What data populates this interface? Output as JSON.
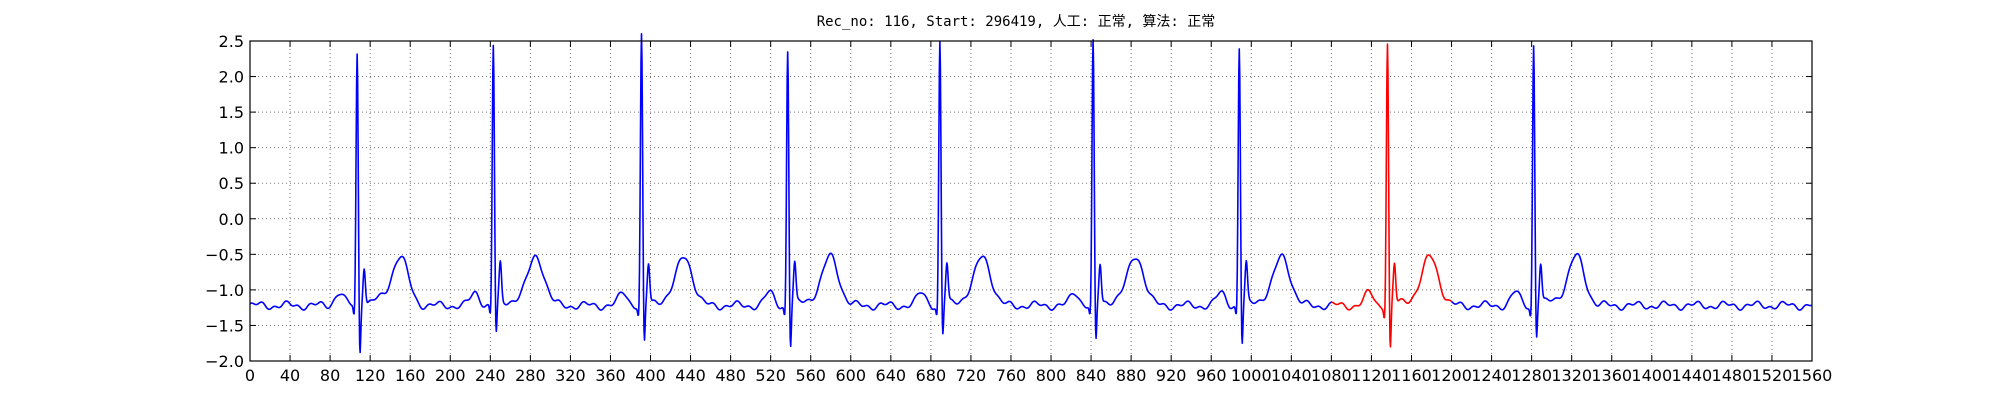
{
  "chart_data": {
    "type": "line",
    "title": "Rec_no: 116, Start: 296419, 人工: 正常, 算法: 正常",
    "xlabel": "",
    "ylabel": "",
    "xlim": [
      0,
      1560
    ],
    "ylim": [
      -2.0,
      2.5
    ],
    "grid": true,
    "x_ticks": [
      0,
      40,
      80,
      120,
      160,
      200,
      240,
      280,
      320,
      360,
      400,
      440,
      480,
      520,
      560,
      600,
      640,
      680,
      720,
      760,
      800,
      840,
      880,
      920,
      960,
      1000,
      1040,
      1080,
      1120,
      1160,
      1200,
      1240,
      1280,
      1320,
      1360,
      1400,
      1440,
      1480,
      1520,
      1560
    ],
    "x_tick_labels": [
      "0",
      "40",
      "80",
      "120",
      "160",
      "200",
      "240",
      "280",
      "320",
      "360",
      "400",
      "440",
      "480",
      "520",
      "560",
      "600",
      "640",
      "680",
      "720",
      "760",
      "800",
      "840",
      "880",
      "920",
      "960",
      "1000",
      "1040",
      "1080",
      "1120",
      "1160",
      "1200",
      "1240",
      "1280",
      "1320",
      "1360",
      "1400",
      "1440",
      "1480",
      "1520",
      "1560"
    ],
    "y_ticks": [
      -2.0,
      -1.5,
      -1.0,
      -0.5,
      0.0,
      0.5,
      1.0,
      1.5,
      2.0,
      2.5
    ],
    "y_tick_labels": [
      "−2.0",
      "−1.5",
      "−1.0",
      "−0.5",
      "0.0",
      "0.5",
      "1.0",
      "1.5",
      "2.0",
      "2.5"
    ],
    "series": [
      {
        "color": "#0000ff",
        "segments": [
          {
            "x_start": 0,
            "x_end": 1080
          },
          {
            "x_start": 1200,
            "x_end": 1560
          }
        ]
      },
      {
        "color": "#ff0000",
        "segments": [
          {
            "x_start": 1080,
            "x_end": 1200
          }
        ]
      }
    ],
    "beats": [
      {
        "r_x": 107,
        "r_y": 2.2,
        "s_y": -1.85
      },
      {
        "r_x": 243,
        "r_y": 2.32,
        "s_y": -1.6
      },
      {
        "r_x": 391,
        "r_y": 2.45,
        "s_y": -1.75
      },
      {
        "r_x": 537,
        "r_y": 2.25,
        "s_y": -1.78
      },
      {
        "r_x": 689,
        "r_y": 2.35,
        "s_y": -1.62
      },
      {
        "r_x": 842,
        "r_y": 2.35,
        "s_y": -1.72
      },
      {
        "r_x": 988,
        "r_y": 2.28,
        "s_y": -1.75
      },
      {
        "r_x": 1136,
        "r_y": 2.35,
        "s_y": -1.85
      },
      {
        "r_x": 1282,
        "r_y": 2.33,
        "s_y": -1.62
      }
    ]
  }
}
